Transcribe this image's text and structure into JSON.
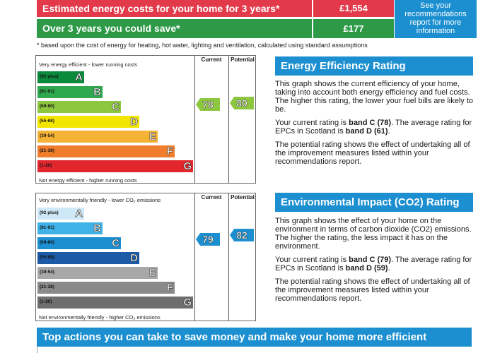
{
  "costs": {
    "row1_label": "Estimated energy costs for your home for 3 years*",
    "row1_value": "£1,554",
    "row2_label": "Over 3 years you could save*",
    "row2_value": "£177",
    "see_recommendations": "See your recommendations report for more information",
    "footnote": "* based upon the cost of energy for heating, hot water, lighting and ventilation, calculated using standard assumptions"
  },
  "energy_chart": {
    "top_caption": "Very energy efficient - lower running costs",
    "bottom_caption": "Not energy efficient - higher running costs",
    "current_header": "Current",
    "potential_header": "Potential",
    "current": "78",
    "potential": "80",
    "current_color": "#8dc63f",
    "potential_color": "#8dc63f"
  },
  "env_chart": {
    "top_caption": "Very environmentally friendly - lower CO₂ emissions",
    "bottom_caption": "Not environmentally friendly - higher CO₂ emissions",
    "current_header": "Current",
    "potential_header": "Potential",
    "current": "79",
    "potential": "82",
    "current_color": "#1c8fd0",
    "potential_color": "#1c8fd0"
  },
  "energy_bands": [
    {
      "range": "(92 plus)",
      "letter": "A",
      "color": "#0c8a3c"
    },
    {
      "range": "(81-91)",
      "letter": "B",
      "color": "#2fa84f"
    },
    {
      "range": "(69-80)",
      "letter": "C",
      "color": "#8dc63f"
    },
    {
      "range": "(55-68)",
      "letter": "D",
      "color": "#f2e500"
    },
    {
      "range": "(39-54)",
      "letter": "E",
      "color": "#f5b335"
    },
    {
      "range": "(21-38)",
      "letter": "F",
      "color": "#ef7d2b"
    },
    {
      "range": "(1-20)",
      "letter": "G",
      "color": "#e2262e"
    }
  ],
  "env_bands": [
    {
      "range": "(92 plus)",
      "letter": "A",
      "color": "#cfe8f7"
    },
    {
      "range": "(81-91)",
      "letter": "B",
      "color": "#3fb2e8"
    },
    {
      "range": "(69-80)",
      "letter": "C",
      "color": "#1c8fd0"
    },
    {
      "range": "(55-68)",
      "letter": "D",
      "color": "#1b5aa6"
    },
    {
      "range": "(39-54)",
      "letter": "E",
      "color": "#a8a8a8"
    },
    {
      "range": "(21-38)",
      "letter": "F",
      "color": "#8a8a8a"
    },
    {
      "range": "(1-20)",
      "letter": "G",
      "color": "#6e6e6e"
    }
  ],
  "eer_panel": {
    "title": "Energy Efficiency Rating",
    "p1": "This graph shows the current efficiency of your home, taking into account both energy efficiency and fuel costs. The higher this rating, the lower your fuel bills are likely to be.",
    "p2_pre": "Your current rating is ",
    "p2_band": "band C (78)",
    "p2_mid": ". The average rating for EPCs in Scotland is ",
    "p2_avg": "band D (61)",
    "p2_end": ".",
    "p3": "The potential rating shows the effect of undertaking all of the improvement measures listed within your recommendations report."
  },
  "env_panel": {
    "title": "Environmental Impact (CO2) Rating",
    "p1": "This graph shows the effect of your home on the environment in terms of carbon dioxide (CO2) emissions. The higher the rating, the less impact it has on the environment.",
    "p2_pre": "Your current rating is ",
    "p2_band": "band C (79)",
    "p2_mid": ". The average rating for EPCs in Scotland is ",
    "p2_avg": "band D (59)",
    "p2_end": ".",
    "p3": "The potential rating shows the effect of undertaking all of the improvement measures listed within your recommendations report."
  },
  "bottom_bar": "Top actions you can take to save money and make your home more efficient"
}
